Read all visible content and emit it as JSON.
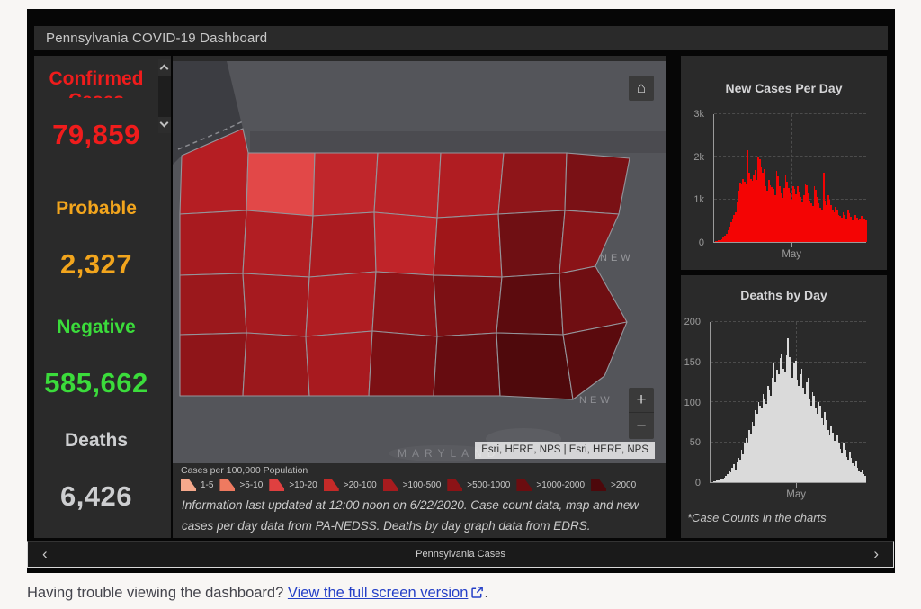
{
  "header": {
    "title": "Pennsylvania COVID-19 Dashboard"
  },
  "stats": {
    "items": [
      {
        "key": "confirmed",
        "label": "Confirmed Cases",
        "value": "79,859",
        "color": "#ef1c1c",
        "clip": true
      },
      {
        "key": "probable",
        "label": "Probable",
        "value": "2,327",
        "color": "#f2a51d",
        "clip": false
      },
      {
        "key": "negative",
        "label": "Negative",
        "value": "585,662",
        "color": "#3bdc3b",
        "clip": false
      },
      {
        "key": "deaths",
        "label": "Deaths",
        "value": "6,426",
        "color": "#cdced0",
        "clip": false
      }
    ]
  },
  "map": {
    "attribution": "Esri, HERE, NPS | Esri, HERE, NPS",
    "home_glyph": "⌂",
    "zoom_in": "+",
    "zoom_out": "−",
    "labels": {
      "new_york": "NEW",
      "new_jersey": "NEW",
      "maryland": "MARYLAND"
    }
  },
  "legend": {
    "title": "Cases per 100,000 Population",
    "items": [
      {
        "label": "1-5",
        "color": "#f5a98c"
      },
      {
        "label": ">5-10",
        "color": "#ee7a60"
      },
      {
        "label": ">10-20",
        "color": "#df4040"
      },
      {
        "label": ">20-100",
        "color": "#c52a28"
      },
      {
        "label": ">100-500",
        "color": "#a61b1e"
      },
      {
        "label": ">500-1000",
        "color": "#8c1316"
      },
      {
        "label": ">1000-2000",
        "color": "#6b0d10"
      },
      {
        "label": ">2000",
        "color": "#4d080b"
      }
    ]
  },
  "info_text": "Information last updated at 12:00 noon on 6/22/2020. Case count data, map and new cases per day data from PA-NEDSS.  Deaths by day graph data from EDRS.",
  "footnote": "*Case Counts in the charts",
  "tab_bar": {
    "label": "Pennsylvania Cases",
    "prev": "‹",
    "next": "›"
  },
  "footer": {
    "prefix": "Having trouble viewing the dashboard? ",
    "link": "View the full screen version",
    "suffix": "."
  },
  "chart_data": [
    {
      "type": "bar",
      "title": "New Cases Per Day",
      "x_axis_note": "daily, mid-March 2020 through 6/22/2020",
      "ylim": [
        0,
        3000
      ],
      "yticks": [
        0,
        1000,
        2000,
        3000
      ],
      "ytick_labels": [
        "0",
        "1k",
        "2k",
        "3k"
      ],
      "x_tick_labels": [
        "May"
      ],
      "x_tick_position_pct": 51,
      "bar_color": "#f40404",
      "grid": "dashed",
      "values": [
        15,
        22,
        35,
        48,
        70,
        110,
        150,
        200,
        270,
        350,
        460,
        560,
        640,
        700,
        950,
        1200,
        1400,
        1370,
        1480,
        1420,
        1360,
        2160,
        1620,
        1480,
        1430,
        1560,
        1700,
        1450,
        2000,
        1940,
        1750,
        1630,
        1710,
        1300,
        1210,
        1450,
        1340,
        1290,
        1240,
        1100,
        1660,
        1540,
        1320,
        1160,
        1040,
        1260,
        1560,
        1410,
        1270,
        1140,
        1000,
        1310,
        1250,
        1130,
        1300,
        1180,
        1050,
        950,
        1100,
        1380,
        1330,
        1150,
        980,
        900,
        850,
        1300,
        1230,
        1050,
        910,
        800,
        760,
        1620,
        970,
        870,
        1090,
        1000,
        870,
        750,
        700,
        820,
        750,
        640,
        610,
        580,
        700,
        630,
        550,
        730,
        670,
        590,
        510,
        480,
        630,
        570,
        510,
        560,
        610,
        490,
        530,
        500
      ]
    },
    {
      "type": "bar",
      "title": "Deaths by Day",
      "x_axis_note": "daily, mid-March 2020 through 6/22/2020",
      "ylim": [
        0,
        200
      ],
      "yticks": [
        0,
        50,
        100,
        150,
        200
      ],
      "ytick_labels": [
        "0",
        "50",
        "100",
        "150",
        "200"
      ],
      "x_tick_labels": [
        "May"
      ],
      "x_tick_position_pct": 55,
      "bar_color": "#dadada",
      "grid": "dashed",
      "values": [
        0,
        1,
        1,
        2,
        2,
        3,
        4,
        5,
        6,
        8,
        10,
        14,
        12,
        18,
        22,
        16,
        25,
        30,
        28,
        40,
        35,
        50,
        55,
        48,
        65,
        60,
        75,
        70,
        90,
        85,
        100,
        95,
        92,
        110,
        105,
        98,
        120,
        115,
        108,
        130,
        150,
        125,
        140,
        135,
        155,
        160,
        142,
        138,
        158,
        180,
        156,
        145,
        130,
        148,
        152,
        128,
        120,
        135,
        142,
        118,
        110,
        125,
        130,
        105,
        95,
        112,
        108,
        92,
        85,
        100,
        96,
        80,
        72,
        88,
        78,
        65,
        58,
        70,
        62,
        52,
        45,
        58,
        50,
        42,
        36,
        48,
        40,
        32,
        28,
        38,
        30,
        24,
        20,
        26,
        18,
        14,
        12,
        15,
        10,
        8
      ]
    }
  ]
}
